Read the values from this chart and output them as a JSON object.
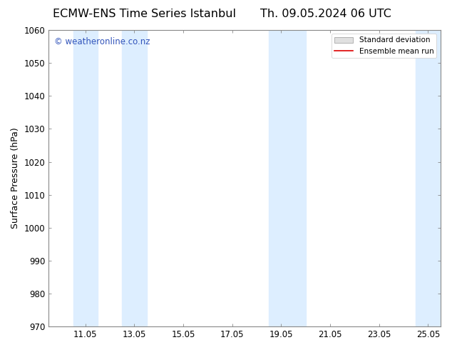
{
  "title_left": "ECMW-ENS Time Series Istanbul",
  "title_right": "Th. 09.05.2024 06 UTC",
  "ylabel": "Surface Pressure (hPa)",
  "xlabel": "",
  "xlim": [
    9.55,
    25.55
  ],
  "ylim": [
    970,
    1060
  ],
  "yticks": [
    970,
    980,
    990,
    1000,
    1010,
    1020,
    1030,
    1040,
    1050,
    1060
  ],
  "xticks": [
    11.05,
    13.05,
    15.05,
    17.05,
    19.05,
    21.05,
    23.05,
    25.05
  ],
  "xticklabels": [
    "11.05",
    "13.05",
    "15.05",
    "17.05",
    "19.05",
    "21.05",
    "23.05",
    "25.05"
  ],
  "shaded_bands": [
    {
      "x_start": 10.55,
      "x_end": 11.55
    },
    {
      "x_start": 12.55,
      "x_end": 13.55
    },
    {
      "x_start": 18.55,
      "x_end": 19.55
    },
    {
      "x_start": 19.55,
      "x_end": 20.05
    },
    {
      "x_start": 24.55,
      "x_end": 25.55
    }
  ],
  "shade_color": "#ddeeff",
  "watermark_text": "© weatheronline.co.nz",
  "watermark_color": "#3355bb",
  "legend_std_dev_color": "#cccccc",
  "legend_mean_color": "#dd0000",
  "bg_color": "#ffffff",
  "title_fontsize": 11.5,
  "label_fontsize": 9,
  "tick_fontsize": 8.5,
  "legend_fontsize": 7.5
}
